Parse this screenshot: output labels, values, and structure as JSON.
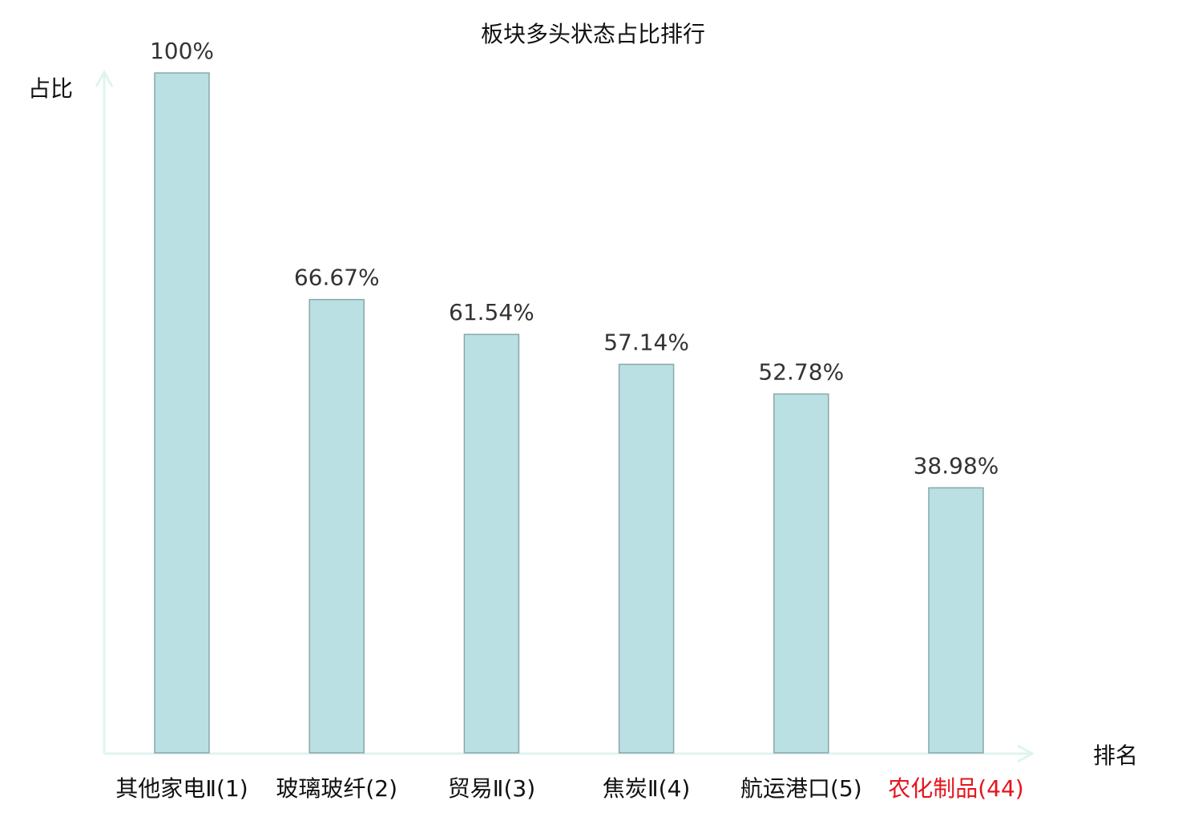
{
  "chart_data": {
    "type": "bar",
    "title": "板块多头状态占比排行",
    "xlabel": "排名",
    "ylabel": "占比",
    "categories": [
      "其他家电Ⅱ(1)",
      "玻璃玻纤(2)",
      "贸易Ⅱ(3)",
      "焦炭Ⅱ(4)",
      "航运港口(5)",
      "农化制品(44)"
    ],
    "values": [
      100,
      66.67,
      61.54,
      57.14,
      52.78,
      38.98
    ],
    "data_labels": [
      "100%",
      "66.67%",
      "61.54%",
      "57.14%",
      "52.78%",
      "38.98%"
    ],
    "highlighted_category": "农化制品(44)",
    "ylim": [
      0,
      100
    ],
    "grid": false,
    "colors": {
      "bar_fill": "#bbe0e3",
      "bar_stroke": "#88a8a8",
      "axis": "#e0f3f0",
      "highlight_label": "#e6141e",
      "label": "#111111",
      "data_label": "#333333"
    }
  }
}
